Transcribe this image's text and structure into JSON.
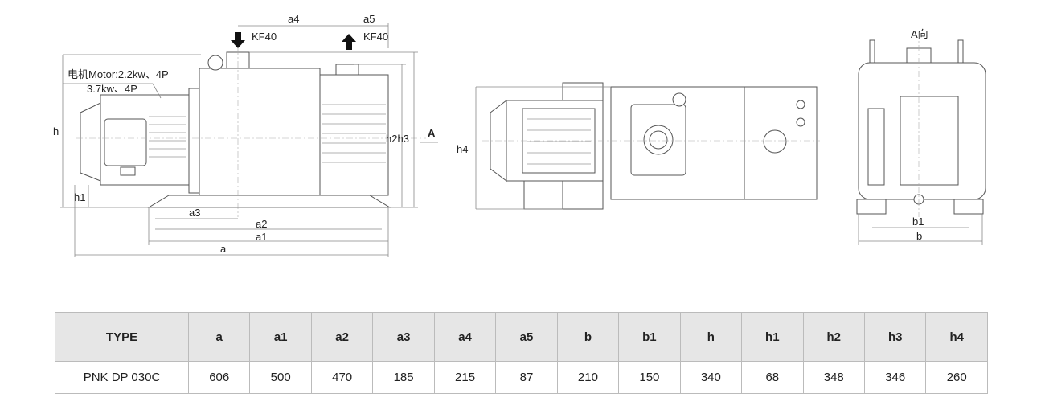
{
  "side_view": {
    "labels": {
      "a": "a",
      "a1": "a1",
      "a2": "a2",
      "a3": "a3",
      "a4": "a4",
      "a5": "a5",
      "h": "h",
      "h1": "h1",
      "h2h3": "h2h3",
      "view_arrow": "A"
    },
    "inlet": "KF40",
    "outlet": "KF40",
    "motor_line1": "电机Motor:2.2kw、4P",
    "motor_line2": "3.7kw、4P"
  },
  "top_view": {
    "labels": {
      "h4": "h4"
    }
  },
  "end_view": {
    "title": "A向",
    "labels": {
      "b1": "b1",
      "b": "b"
    }
  },
  "table": {
    "headers": [
      "TYPE",
      "a",
      "a1",
      "a2",
      "a3",
      "a4",
      "a5",
      "b",
      "b1",
      "h",
      "h1",
      "h2",
      "h3",
      "h4"
    ],
    "rows": [
      [
        "PNK  DP  030C",
        "606",
        "500",
        "470",
        "185",
        "215",
        "87",
        "210",
        "150",
        "340",
        "68",
        "348",
        "346",
        "260"
      ]
    ]
  }
}
